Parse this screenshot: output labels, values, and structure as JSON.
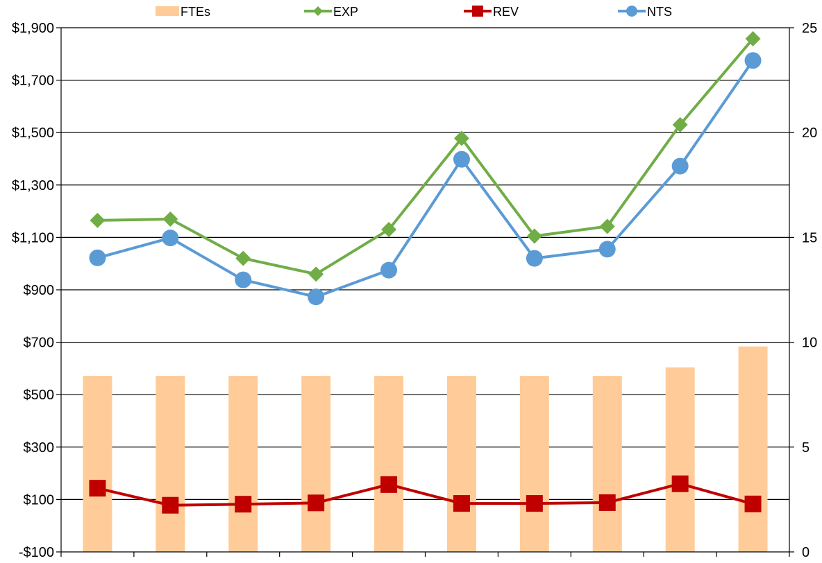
{
  "chart_data": {
    "type": "bar+line",
    "title": "",
    "xlabel": "",
    "ylabel": "",
    "y2label": "",
    "categories": [
      "",
      "",
      "",
      "",
      "",
      "",
      "",
      "",
      "",
      ""
    ],
    "ylim": [
      -100,
      1900
    ],
    "y2lim": [
      0,
      25
    ],
    "y_ticks": [
      -100,
      100,
      300,
      500,
      700,
      900,
      1100,
      1300,
      1500,
      1700,
      1900
    ],
    "y_tick_labels": [
      "-$100",
      "$100",
      "$300",
      "$500",
      "$700",
      "$900",
      "$1,100",
      "$1,300",
      "$1,500",
      "$1,700",
      "$1,900"
    ],
    "y2_ticks": [
      0,
      5,
      10,
      15,
      20,
      25
    ],
    "y2_tick_labels": [
      "0",
      "5",
      "10",
      "15",
      "20",
      "25"
    ],
    "grid": "horizontal",
    "legend_position": "top",
    "series": [
      {
        "name": "FTEs",
        "type": "bar",
        "axis": "right",
        "color": "#FFCC99",
        "values": [
          8.4,
          8.4,
          8.4,
          8.4,
          8.4,
          8.4,
          8.4,
          8.4,
          8.8,
          9.8
        ]
      },
      {
        "name": "EXP",
        "type": "line",
        "axis": "left",
        "marker": "diamond",
        "color": "#70AD47",
        "values": [
          1165,
          1170,
          1020,
          960,
          1130,
          1478,
          1105,
          1142,
          1530,
          1858
        ]
      },
      {
        "name": "REV",
        "type": "line",
        "axis": "left",
        "marker": "square",
        "color": "#C00000",
        "values": [
          143,
          78,
          82,
          87,
          157,
          85,
          85,
          88,
          160,
          83
        ]
      },
      {
        "name": "NTS",
        "type": "line",
        "axis": "left",
        "marker": "circle",
        "color": "#5B9BD5",
        "values": [
          1022,
          1098,
          938,
          873,
          975,
          1398,
          1020,
          1055,
          1372,
          1775
        ]
      }
    ]
  }
}
